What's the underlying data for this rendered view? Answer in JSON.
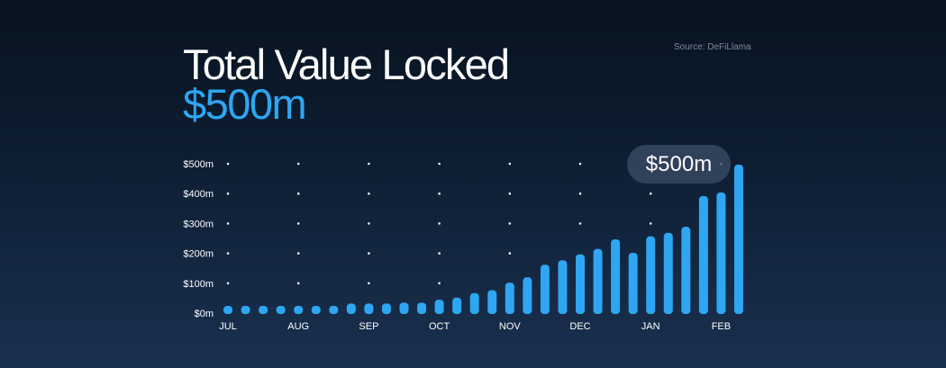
{
  "header": {
    "title": "Total Value Locked",
    "value": "$500m",
    "source": "Source: DeFiLlama"
  },
  "callout": "$500m",
  "colors": {
    "bar": "#2ea6f2",
    "accent": "#2ea6f2"
  },
  "chart_data": {
    "type": "bar",
    "title": "Total Value Locked",
    "xlabel": "",
    "ylabel": "",
    "ylim": [
      0,
      500
    ],
    "yticks": [
      0,
      100,
      200,
      300,
      400,
      500
    ],
    "ytick_labels": [
      "$0m",
      "$100m",
      "$200m",
      "$300m",
      "$400m",
      "$500m"
    ],
    "month_labels": [
      {
        "index": 0,
        "label": "JUL"
      },
      {
        "index": 4,
        "label": "AUG"
      },
      {
        "index": 8,
        "label": "SEP"
      },
      {
        "index": 12,
        "label": "OCT"
      },
      {
        "index": 16,
        "label": "NOV"
      },
      {
        "index": 20,
        "label": "DEC"
      },
      {
        "index": 24,
        "label": "JAN"
      },
      {
        "index": 28,
        "label": "FEB"
      }
    ],
    "values": [
      20,
      20,
      22,
      22,
      22,
      27,
      27,
      35,
      35,
      35,
      38,
      38,
      48,
      55,
      70,
      80,
      105,
      123,
      165,
      180,
      200,
      218,
      250,
      205,
      260,
      272,
      292,
      395,
      407,
      500
    ],
    "grid": "dots",
    "annotation": "$500m"
  }
}
